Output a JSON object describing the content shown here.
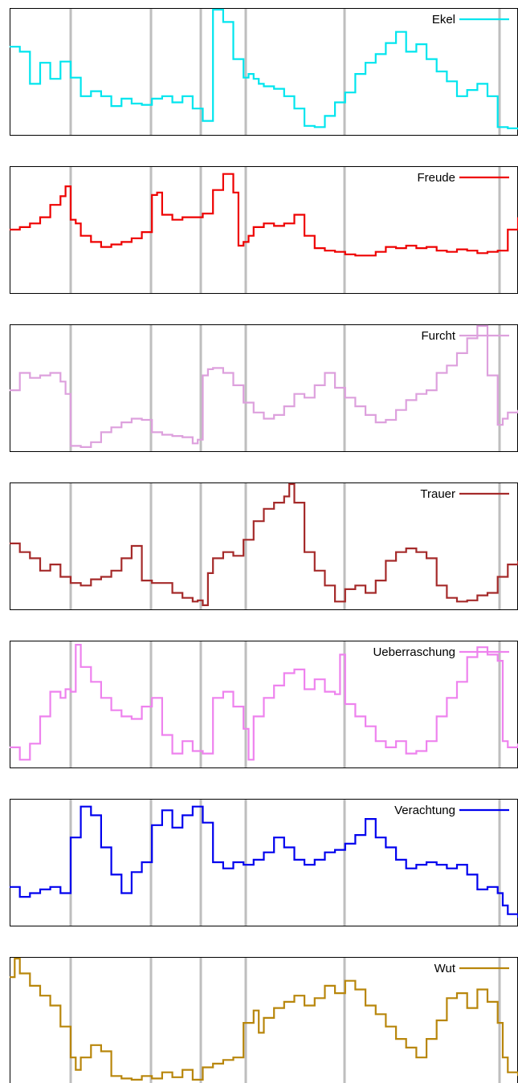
{
  "chart_data": [
    {
      "type": "line",
      "legend": "Ekel",
      "color": "#00e5ee",
      "step": true,
      "grid": "vertical",
      "legend_position": "top-right",
      "xlim": [
        0,
        100
      ],
      "ylim": [
        0,
        100
      ],
      "x": [
        0,
        2,
        4,
        6,
        8,
        10,
        12,
        14,
        16,
        18,
        20,
        22,
        24,
        26,
        28,
        30,
        32,
        34,
        36,
        38,
        40,
        42,
        44,
        46,
        47,
        48,
        49,
        50,
        52,
        54,
        56,
        58,
        60,
        62,
        64,
        66,
        68,
        70,
        72,
        74,
        76,
        78,
        80,
        82,
        84,
        86,
        88,
        90,
        92,
        94,
        96,
        98,
        100
      ],
      "values": [
        70,
        66,
        40,
        57,
        44,
        58,
        45,
        30,
        34,
        30,
        22,
        28,
        24,
        23,
        28,
        30,
        25,
        30,
        20,
        10,
        100,
        90,
        60,
        45,
        48,
        44,
        40,
        38,
        36,
        30,
        20,
        6,
        5,
        14,
        25,
        33,
        48,
        57,
        64,
        73,
        82,
        66,
        72,
        60,
        50,
        42,
        30,
        35,
        40,
        30,
        5,
        4,
        3
      ]
    },
    {
      "type": "line",
      "legend": "Freude",
      "color": "#ee0000",
      "step": true,
      "grid": "vertical",
      "legend_position": "top-right",
      "xlim": [
        0,
        100
      ],
      "ylim": [
        0,
        100
      ],
      "x": [
        0,
        2,
        4,
        6,
        8,
        10,
        11,
        12,
        13,
        14,
        16,
        18,
        20,
        22,
        24,
        26,
        28,
        29,
        30,
        32,
        34,
        36,
        38,
        40,
        42,
        44,
        45,
        46,
        47,
        48,
        50,
        52,
        54,
        56,
        58,
        60,
        62,
        64,
        66,
        68,
        70,
        72,
        74,
        76,
        78,
        80,
        82,
        84,
        86,
        88,
        90,
        92,
        94,
        96,
        98,
        100
      ],
      "values": [
        50,
        52,
        55,
        60,
        70,
        77,
        85,
        58,
        55,
        45,
        40,
        36,
        38,
        40,
        43,
        48,
        78,
        80,
        62,
        58,
        60,
        60,
        63,
        82,
        95,
        80,
        37,
        40,
        45,
        52,
        55,
        53,
        55,
        62,
        45,
        35,
        33,
        32,
        30,
        29,
        29,
        32,
        36,
        35,
        37,
        35,
        36,
        33,
        32,
        34,
        33,
        31,
        32,
        33,
        50,
        60
      ]
    },
    {
      "type": "line",
      "legend": "Furcht",
      "color": "#dda0dd",
      "step": true,
      "grid": "vertical",
      "legend_position": "top-right",
      "xlim": [
        0,
        100
      ],
      "ylim": [
        0,
        100
      ],
      "x": [
        0,
        2,
        4,
        6,
        8,
        10,
        11,
        12,
        14,
        16,
        18,
        20,
        22,
        24,
        26,
        28,
        30,
        32,
        34,
        36,
        37,
        38,
        39,
        40,
        42,
        44,
        46,
        48,
        50,
        52,
        54,
        56,
        58,
        60,
        62,
        64,
        66,
        68,
        70,
        72,
        74,
        76,
        78,
        80,
        82,
        84,
        86,
        88,
        90,
        92,
        94,
        96,
        97,
        98,
        100
      ],
      "values": [
        48,
        62,
        58,
        60,
        62,
        55,
        45,
        3,
        2,
        6,
        14,
        18,
        22,
        25,
        24,
        14,
        12,
        11,
        10,
        5,
        8,
        60,
        65,
        66,
        62,
        52,
        38,
        30,
        25,
        28,
        35,
        45,
        42,
        52,
        62,
        50,
        42,
        35,
        28,
        22,
        24,
        32,
        40,
        45,
        48,
        62,
        68,
        78,
        90,
        100,
        60,
        20,
        25,
        30,
        32
      ]
    },
    {
      "type": "line",
      "legend": "Trauer",
      "color": "#a52a2a",
      "step": true,
      "grid": "vertical",
      "legend_position": "top-right",
      "xlim": [
        0,
        100
      ],
      "ylim": [
        0,
        100
      ],
      "x": [
        0,
        2,
        4,
        6,
        8,
        10,
        12,
        14,
        16,
        18,
        20,
        22,
        24,
        26,
        28,
        30,
        32,
        34,
        36,
        37,
        38,
        39,
        40,
        42,
        44,
        46,
        48,
        50,
        52,
        54,
        55,
        56,
        58,
        60,
        62,
        64,
        66,
        68,
        70,
        72,
        74,
        76,
        78,
        80,
        82,
        84,
        86,
        88,
        90,
        92,
        94,
        96,
        98,
        100
      ],
      "values": [
        52,
        45,
        40,
        30,
        35,
        25,
        20,
        18,
        23,
        25,
        30,
        40,
        50,
        22,
        20,
        20,
        12,
        8,
        5,
        6,
        2,
        28,
        40,
        45,
        42,
        55,
        70,
        80,
        85,
        90,
        100,
        85,
        45,
        30,
        18,
        5,
        15,
        18,
        12,
        22,
        38,
        45,
        48,
        45,
        40,
        18,
        8,
        5,
        6,
        10,
        12,
        25,
        35,
        38
      ]
    },
    {
      "type": "line",
      "legend": "Ueberraschung",
      "color": "#ee82ee",
      "step": true,
      "grid": "vertical",
      "legend_position": "top-right",
      "xlim": [
        0,
        100
      ],
      "ylim": [
        0,
        100
      ],
      "x": [
        0,
        2,
        4,
        6,
        8,
        10,
        11,
        12,
        13,
        14,
        16,
        18,
        20,
        22,
        24,
        26,
        28,
        30,
        32,
        34,
        36,
        38,
        40,
        42,
        44,
        46,
        47,
        48,
        50,
        52,
        54,
        56,
        58,
        60,
        62,
        64,
        65,
        66,
        68,
        70,
        72,
        74,
        76,
        78,
        80,
        82,
        84,
        86,
        88,
        90,
        92,
        94,
        96,
        97,
        98,
        100
      ],
      "values": [
        15,
        5,
        18,
        40,
        60,
        55,
        62,
        60,
        98,
        80,
        68,
        55,
        45,
        40,
        38,
        48,
        55,
        25,
        10,
        20,
        12,
        10,
        55,
        60,
        48,
        30,
        5,
        40,
        55,
        65,
        75,
        78,
        62,
        70,
        60,
        58,
        90,
        50,
        40,
        32,
        20,
        15,
        20,
        10,
        12,
        20,
        40,
        55,
        68,
        88,
        96,
        90,
        85,
        20,
        15,
        18
      ]
    },
    {
      "type": "line",
      "legend": "Verachtung",
      "color": "#0000ee",
      "step": true,
      "grid": "vertical",
      "legend_position": "top-right",
      "xlim": [
        0,
        100
      ],
      "ylim": [
        0,
        100
      ],
      "x": [
        0,
        2,
        4,
        6,
        8,
        10,
        12,
        14,
        16,
        18,
        20,
        22,
        24,
        26,
        28,
        30,
        32,
        34,
        36,
        38,
        40,
        42,
        44,
        46,
        48,
        50,
        52,
        54,
        56,
        58,
        60,
        62,
        64,
        66,
        68,
        70,
        72,
        74,
        76,
        78,
        80,
        82,
        84,
        86,
        88,
        90,
        92,
        94,
        96,
        97,
        98,
        100
      ],
      "values": [
        30,
        22,
        25,
        28,
        30,
        25,
        70,
        95,
        88,
        62,
        40,
        25,
        42,
        50,
        80,
        92,
        78,
        88,
        95,
        82,
        50,
        45,
        50,
        48,
        52,
        58,
        70,
        62,
        52,
        48,
        52,
        58,
        60,
        65,
        72,
        85,
        70,
        62,
        52,
        45,
        48,
        50,
        48,
        45,
        48,
        40,
        28,
        30,
        25,
        15,
        8,
        5
      ]
    },
    {
      "type": "line",
      "legend": "Wut",
      "color": "#b8860b",
      "step": true,
      "grid": "vertical",
      "legend_position": "top-right",
      "xlim": [
        0,
        100
      ],
      "ylim": [
        0,
        100
      ],
      "x": [
        0,
        1,
        2,
        4,
        6,
        8,
        10,
        12,
        13,
        14,
        16,
        18,
        20,
        22,
        24,
        26,
        28,
        30,
        32,
        34,
        36,
        38,
        40,
        42,
        44,
        46,
        48,
        49,
        50,
        52,
        54,
        56,
        58,
        60,
        62,
        64,
        66,
        68,
        70,
        72,
        74,
        76,
        78,
        80,
        82,
        84,
        86,
        88,
        90,
        92,
        94,
        96,
        97,
        98,
        100
      ],
      "values": [
        85,
        100,
        88,
        78,
        70,
        62,
        45,
        20,
        10,
        20,
        30,
        25,
        5,
        3,
        2,
        5,
        3,
        8,
        4,
        10,
        2,
        12,
        15,
        18,
        20,
        48,
        58,
        40,
        52,
        60,
        65,
        70,
        62,
        68,
        78,
        72,
        82,
        75,
        62,
        55,
        45,
        35,
        28,
        20,
        35,
        50,
        68,
        72,
        60,
        75,
        65,
        48,
        20,
        8,
        5
      ]
    }
  ]
}
